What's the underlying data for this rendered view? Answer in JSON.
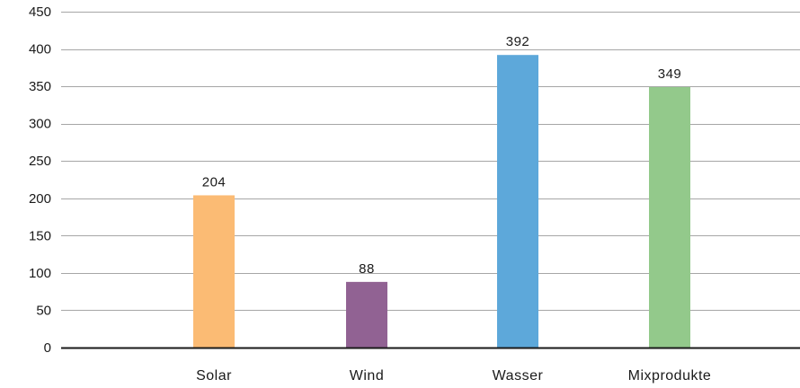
{
  "chart_data": {
    "type": "bar",
    "categories": [
      "Solar",
      "Wind",
      "Wasser",
      "Mixprodukte"
    ],
    "values": [
      204,
      88,
      392,
      349
    ],
    "data_labels": [
      "204",
      "88",
      "392",
      "349"
    ],
    "colors": [
      "#fbbb74",
      "#916293",
      "#5da8da",
      "#93c98b"
    ],
    "ylim": [
      0,
      450
    ],
    "yticks": [
      0,
      50,
      100,
      150,
      200,
      250,
      300,
      350,
      400,
      450
    ],
    "ytick_labels": [
      "0",
      "50",
      "100",
      "150",
      "200",
      "250",
      "300",
      "350",
      "400",
      "450"
    ],
    "grid": true,
    "gridline_color": "#a6a6a6",
    "axis_color": "#1a1a1a",
    "title": "",
    "xlabel": "",
    "ylabel": ""
  }
}
